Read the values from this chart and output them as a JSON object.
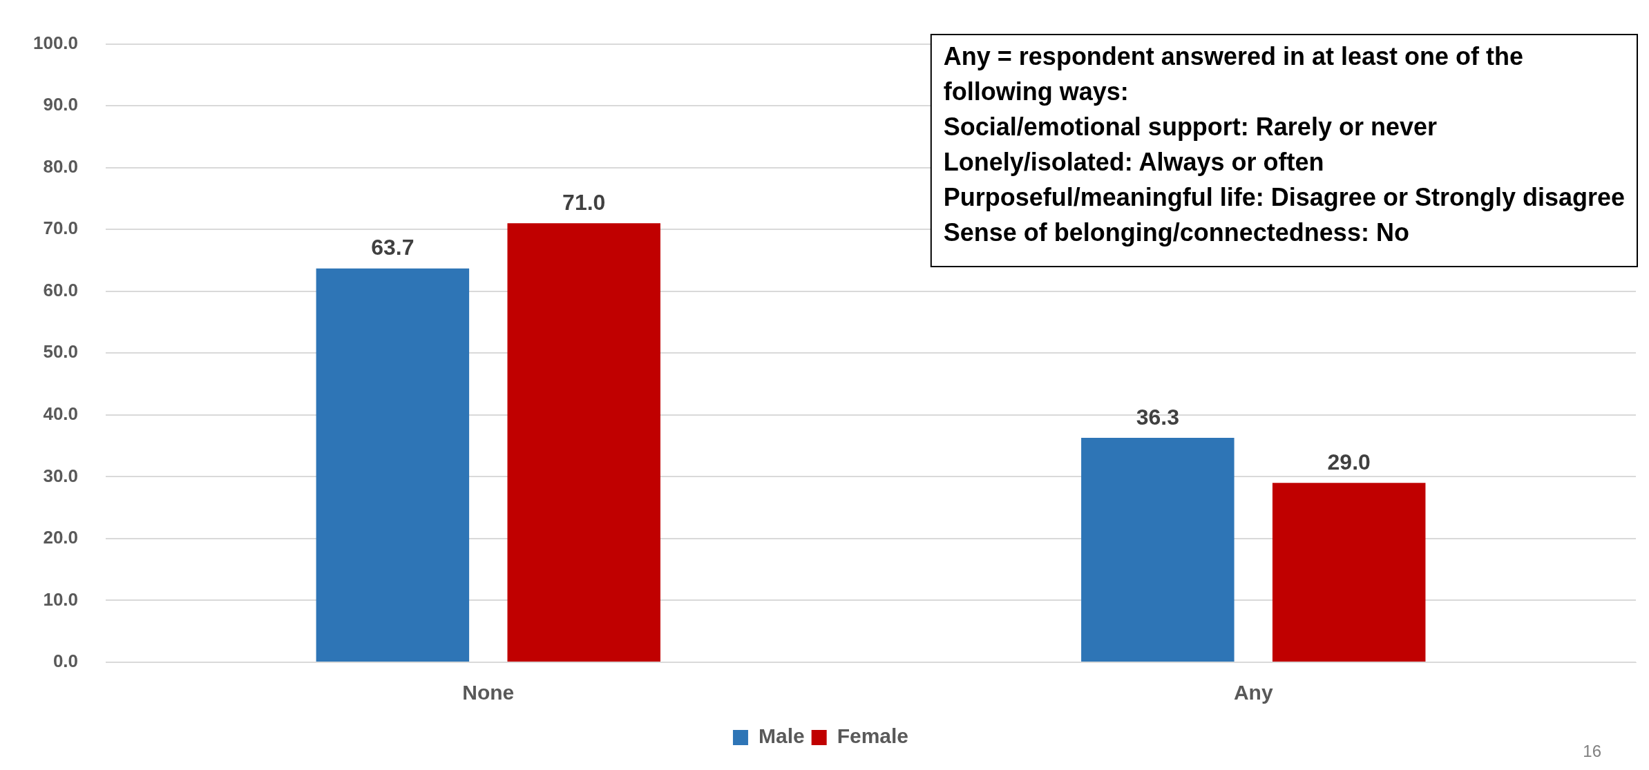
{
  "chart_data": {
    "type": "bar",
    "categories": [
      "None",
      "Any"
    ],
    "series": [
      {
        "name": "Male",
        "color": "#2e75b6",
        "values": [
          63.7,
          36.3
        ],
        "value_labels": [
          "63.7",
          "36.3"
        ]
      },
      {
        "name": "Female",
        "color": "#c00000",
        "values": [
          71.0,
          29.0
        ],
        "value_labels": [
          "71.0",
          "29.0"
        ]
      }
    ],
    "ylim": [
      0,
      100
    ],
    "yticks": [
      {
        "value": 0,
        "label": "0.0"
      },
      {
        "value": 10,
        "label": "10.0"
      },
      {
        "value": 20,
        "label": "20.0"
      },
      {
        "value": 30,
        "label": "30.0"
      },
      {
        "value": 40,
        "label": "40.0"
      },
      {
        "value": 50,
        "label": "50.0"
      },
      {
        "value": 60,
        "label": "60.0"
      },
      {
        "value": 70,
        "label": "70.0"
      },
      {
        "value": 80,
        "label": "80.0"
      },
      {
        "value": 90,
        "label": "90.0"
      },
      {
        "value": 100,
        "label": "100.0"
      }
    ],
    "grid": "y",
    "legend": "bottom",
    "annotations": [
      "Any = respondent answered in at least one of the\nfollowing ways:\nSocial/emotional support: Rarely or never\nLonely/isolated: Always or often\nPurposeful/meaningful life: Disagree or Strongly disagree\nSense of belonging/connectedness: No",
      "16"
    ]
  }
}
